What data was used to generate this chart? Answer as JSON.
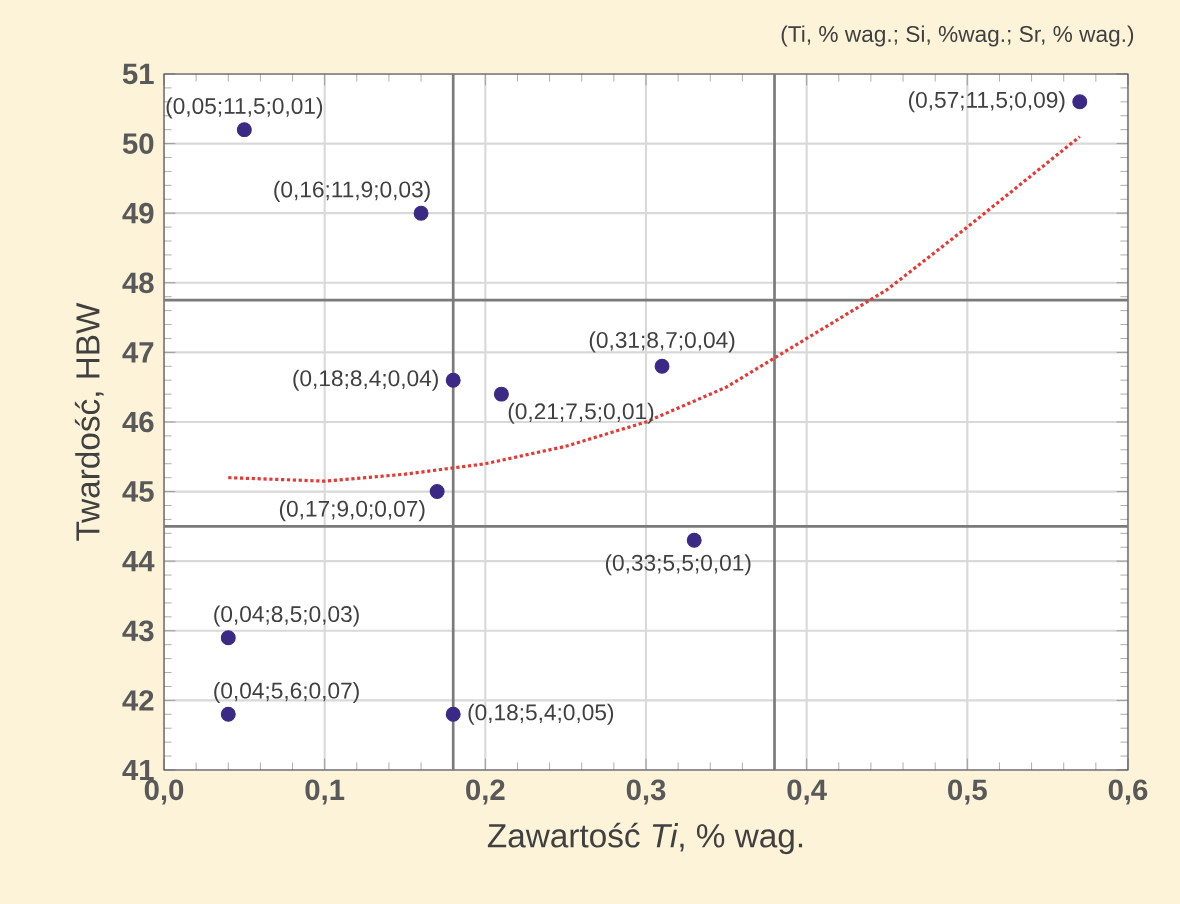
{
  "chart_data": {
    "type": "scatter",
    "xlabel": "Zawartość *Ti*, % wag.",
    "ylabel": "Twardość, HBW",
    "xlim": [
      0,
      0.6
    ],
    "ylim": [
      41,
      51
    ],
    "xticks": [
      {
        "value": 0,
        "label": "0,0"
      },
      {
        "value": 0.1,
        "label": "0,1"
      },
      {
        "value": 0.2,
        "label": "0,2"
      },
      {
        "value": 0.3,
        "label": "0,3"
      },
      {
        "value": 0.4,
        "label": "0,4"
      },
      {
        "value": 0.5,
        "label": "0,5"
      },
      {
        "value": 0.6,
        "label": "0,6"
      }
    ],
    "yticks": [
      41,
      42,
      43,
      44,
      45,
      46,
      47,
      48,
      49,
      50,
      51
    ],
    "grid": true,
    "series": [
      {
        "type": "scatter",
        "color": "#3b2a85",
        "marker": "circle",
        "x": [
          0.05,
          0.16,
          0.18,
          0.21,
          0.31,
          0.57,
          0.17,
          0.33,
          0.04,
          0.04,
          0.18
        ],
        "values": [
          50.2,
          49.0,
          46.6,
          46.4,
          46.8,
          50.6,
          45.0,
          44.3,
          42.9,
          41.8,
          41.8
        ]
      },
      {
        "type": "line",
        "color": "#e53935",
        "marker": "none",
        "line_style": "dotted",
        "x": [
          0.04,
          0.1,
          0.15,
          0.2,
          0.25,
          0.3,
          0.35,
          0.4,
          0.45,
          0.5,
          0.57
        ],
        "values": [
          45.2,
          45.15,
          45.25,
          45.4,
          45.65,
          46.0,
          46.5,
          47.2,
          47.9,
          48.8,
          50.1
        ]
      }
    ],
    "ref_lines": [
      {
        "axis": "x",
        "value": 0.18,
        "color": "#7a7a7a"
      },
      {
        "axis": "x",
        "value": 0.38,
        "color": "#7a7a7a"
      },
      {
        "axis": "y",
        "value": 47.75,
        "color": "#7a7a7a"
      },
      {
        "axis": "y",
        "value": 44.5,
        "color": "#7a7a7a"
      }
    ],
    "annotations": [
      "(Ti, % wag.; Si, %wag.; Sr, % wag.)",
      {
        "text": "(0,05;11,5;0,01)",
        "x": 0.05,
        "y": 50.2
      },
      {
        "text": "(0,16;11,9;0,03)",
        "x": 0.16,
        "y": 49.0
      },
      {
        "text": "(0,18;8,4;0,04)",
        "x": 0.18,
        "y": 46.6
      },
      {
        "text": "(0,21;7,5;0,01)",
        "x": 0.21,
        "y": 46.4
      },
      {
        "text": "(0,31;8,7;0,04)",
        "x": 0.31,
        "y": 46.8
      },
      {
        "text": "(0,57;11,5;0,09)",
        "x": 0.57,
        "y": 50.6
      },
      {
        "text": "(0,17;9,0;0,07)",
        "x": 0.17,
        "y": 45.0
      },
      {
        "text": "(0,33;5,5;0,01)",
        "x": 0.33,
        "y": 44.3
      },
      {
        "text": "(0,04;8,5;0,03)",
        "x": 0.04,
        "y": 42.9
      },
      {
        "text": "(0,04;5,6;0,07)",
        "x": 0.04,
        "y": 41.8
      },
      {
        "text": "(0,18;5,4;0,05)",
        "x": 0.18,
        "y": 41.8
      }
    ]
  }
}
